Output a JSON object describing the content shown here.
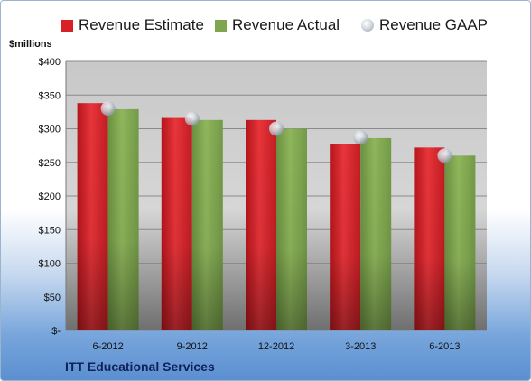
{
  "chart_data": {
    "type": "bar",
    "categories": [
      "6-2012",
      "9-2012",
      "12-2012",
      "3-2013",
      "6-2013"
    ],
    "series": [
      {
        "name": "Revenue Estimate",
        "values": [
          338,
          316,
          313,
          277,
          272
        ]
      },
      {
        "name": "Revenue Actual",
        "values": [
          329,
          313,
          300,
          286,
          260
        ]
      }
    ],
    "points": {
      "name": "Revenue GAAP",
      "values": [
        330,
        315,
        300,
        287,
        260
      ]
    },
    "ylabel": "$millions",
    "ylim": [
      0,
      400
    ],
    "yticks": [
      0,
      50,
      100,
      150,
      200,
      250,
      300,
      350,
      400
    ],
    "ytick_labels": [
      "$-",
      "$50",
      "$100",
      "$150",
      "$200",
      "$250",
      "$300",
      "$350",
      "$400"
    ],
    "grid": true,
    "legend": "top"
  },
  "colors": {
    "estimate": "#d82027",
    "actual": "#7ea64e",
    "gaap": "#c9ced6"
  },
  "footer": {
    "company": "ITT Educational Services"
  }
}
